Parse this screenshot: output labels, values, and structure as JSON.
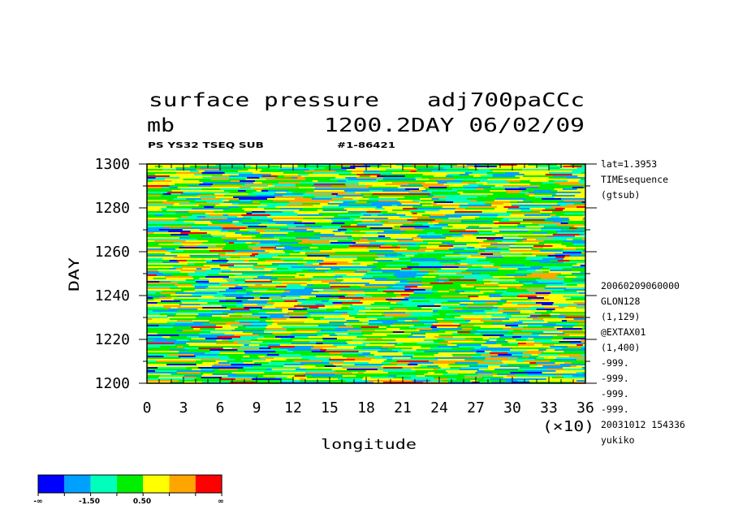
{
  "chart_data": {
    "type": "heatmap",
    "title_left": "surface pressure",
    "title_right": "adj700paCCc",
    "units": "mb",
    "subtitle": "1200.2DAY 06/02/09",
    "caption_left": "PS YS32 TSEQ SUB",
    "caption_right": "#1-86421",
    "xlabel": "longitude",
    "ylabel": "DAY",
    "x_multiplier": "(×10)",
    "xlim": [
      0,
      36
    ],
    "ylim": [
      1200,
      1300
    ],
    "x_ticks": [
      "0",
      "3",
      "6",
      "9",
      "12",
      "15",
      "18",
      "21",
      "24",
      "27",
      "30",
      "33",
      "36"
    ],
    "y_ticks": [
      "1200",
      "1220",
      "1240",
      "1260",
      "1280",
      "1300"
    ],
    "info_top": [
      "lat=1.3953",
      "TIMEsequence",
      "(gtsub)"
    ],
    "info_bottom": [
      "20060209060000",
      "GLON128",
      "(1,129)",
      "@EXTAX01",
      "(1,400)",
      "-999.",
      "-999.",
      "-999.",
      "-999.",
      "20031012 154336",
      "yukiko"
    ],
    "colorbar": {
      "colors": [
        "#0000ff",
        "#00a0ff",
        "#00ffbb",
        "#00ee00",
        "#ffff00",
        "#ffa500",
        "#ff0000"
      ],
      "labels": [
        "-∞",
        "-1.50",
        "0.50",
        "∞"
      ]
    }
  }
}
